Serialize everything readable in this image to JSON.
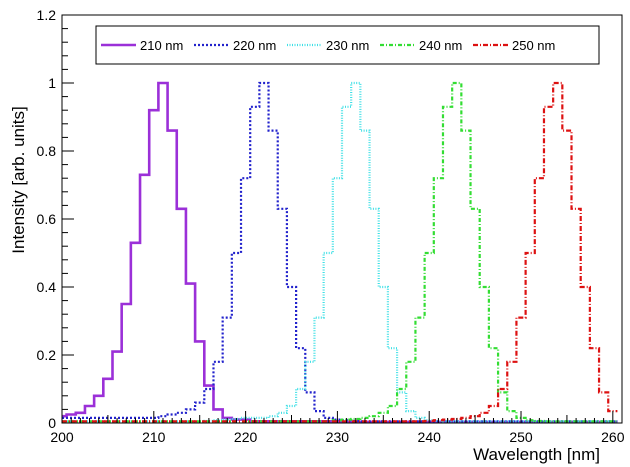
{
  "chart_data": {
    "type": "line",
    "title": "",
    "xlabel": "Wavelength [nm]",
    "ylabel": "Intensity [arb. units]",
    "xlim": [
      200,
      261
    ],
    "ylim": [
      0,
      1.2
    ],
    "grid": false,
    "legend_position": "top",
    "x_ticks": [
      "200",
      "210",
      "220",
      "230",
      "240",
      "250",
      "260"
    ],
    "y_ticks": [
      "0",
      "0.2",
      "0.4",
      "0.6",
      "0.8",
      "1",
      "1.2"
    ],
    "x": [
      200,
      201,
      202,
      203,
      204,
      205,
      206,
      207,
      208,
      209,
      210,
      211,
      212,
      213,
      214,
      215,
      216,
      217,
      218,
      219,
      220,
      221,
      222,
      223,
      224,
      225,
      226,
      227,
      228,
      229,
      230,
      231,
      232,
      233,
      234,
      235,
      236,
      237,
      238,
      239,
      240,
      241,
      242,
      243,
      244,
      245,
      246,
      247,
      248,
      249,
      250,
      251,
      252,
      253,
      254,
      255,
      256,
      257,
      258,
      259,
      260
    ],
    "series": [
      {
        "name": "210 nm",
        "color": "#9b30d8",
        "dash": "solid",
        "width": 2.6,
        "values": [
          0.02,
          0.025,
          0.03,
          0.05,
          0.08,
          0.13,
          0.21,
          0.35,
          0.53,
          0.73,
          0.92,
          1.0,
          0.86,
          0.63,
          0.41,
          0.24,
          0.11,
          0.04,
          0.015,
          0.01,
          0.01,
          0.005,
          0.005,
          0.005,
          0.005,
          0.005,
          0.005,
          0.005,
          0.005,
          0.005,
          0.005,
          0.003,
          0.003,
          0.003,
          0.003,
          0.003,
          0.003,
          0.003,
          0.003,
          0.003,
          0.003,
          0.003,
          0.003,
          0.003,
          0.003,
          0.003,
          0.003,
          0.003,
          0.003,
          0.003,
          0.003,
          0.003,
          0.003,
          0.003,
          0.003,
          0.003,
          0.003,
          0.003,
          0.003,
          0.003,
          0.003
        ]
      },
      {
        "name": "220 nm",
        "color": "#2222cc",
        "dash": "2,2",
        "width": 2.2,
        "values": [
          0.015,
          0.015,
          0.015,
          0.015,
          0.015,
          0.015,
          0.015,
          0.015,
          0.015,
          0.015,
          0.015,
          0.02,
          0.025,
          0.03,
          0.04,
          0.06,
          0.1,
          0.18,
          0.31,
          0.5,
          0.72,
          0.93,
          1.0,
          0.86,
          0.63,
          0.4,
          0.22,
          0.09,
          0.035,
          0.015,
          0.01,
          0.008,
          0.006,
          0.005,
          0.005,
          0.005,
          0.005,
          0.005,
          0.005,
          0.005,
          0.005,
          0.005,
          0.005,
          0.005,
          0.005,
          0.005,
          0.005,
          0.005,
          0.005,
          0.005,
          0.005,
          0.005,
          0.005,
          0.005,
          0.005,
          0.005,
          0.005,
          0.005,
          0.005,
          0.005,
          0.005
        ]
      },
      {
        "name": "230 nm",
        "color": "#40e0e6",
        "dash": "1,1.5",
        "width": 2.2,
        "values": [
          0.005,
          0.005,
          0.005,
          0.005,
          0.005,
          0.005,
          0.005,
          0.005,
          0.005,
          0.005,
          0.005,
          0.005,
          0.005,
          0.005,
          0.005,
          0.005,
          0.006,
          0.008,
          0.01,
          0.012,
          0.015,
          0.015,
          0.015,
          0.02,
          0.03,
          0.05,
          0.1,
          0.18,
          0.31,
          0.5,
          0.72,
          0.93,
          1.0,
          0.86,
          0.63,
          0.4,
          0.22,
          0.09,
          0.035,
          0.015,
          0.008,
          0.006,
          0.005,
          0.005,
          0.005,
          0.005,
          0.005,
          0.005,
          0.005,
          0.005,
          0.005,
          0.005,
          0.005,
          0.005,
          0.005,
          0.005,
          0.005,
          0.005,
          0.005,
          0.005,
          0.005
        ]
      },
      {
        "name": "240 nm",
        "color": "#33dd33",
        "dash": "4,2,1,2",
        "width": 2.2,
        "values": [
          0.005,
          0.005,
          0.005,
          0.005,
          0.005,
          0.005,
          0.005,
          0.005,
          0.005,
          0.005,
          0.005,
          0.005,
          0.005,
          0.005,
          0.005,
          0.005,
          0.005,
          0.005,
          0.005,
          0.005,
          0.005,
          0.005,
          0.005,
          0.005,
          0.005,
          0.005,
          0.005,
          0.005,
          0.005,
          0.005,
          0.008,
          0.01,
          0.012,
          0.015,
          0.02,
          0.03,
          0.05,
          0.1,
          0.18,
          0.31,
          0.5,
          0.72,
          0.93,
          1.0,
          0.86,
          0.63,
          0.4,
          0.22,
          0.09,
          0.035,
          0.015,
          0.008,
          0.006,
          0.005,
          0.005,
          0.005,
          0.005,
          0.005,
          0.005,
          0.005,
          0.005
        ]
      },
      {
        "name": "250 nm",
        "color": "#dd1111",
        "dash": "5,2,1,2",
        "width": 2.2,
        "values": [
          0.005,
          0.005,
          0.005,
          0.005,
          0.005,
          0.005,
          0.005,
          0.005,
          0.005,
          0.005,
          0.005,
          0.005,
          0.005,
          0.005,
          0.005,
          0.005,
          0.005,
          0.005,
          0.005,
          0.005,
          0.005,
          0.005,
          0.005,
          0.005,
          0.005,
          0.005,
          0.005,
          0.005,
          0.005,
          0.005,
          0.005,
          0.005,
          0.005,
          0.005,
          0.005,
          0.005,
          0.005,
          0.005,
          0.005,
          0.005,
          0.006,
          0.008,
          0.01,
          0.012,
          0.015,
          0.02,
          0.03,
          0.05,
          0.1,
          0.18,
          0.31,
          0.5,
          0.72,
          0.93,
          1.0,
          0.86,
          0.63,
          0.4,
          0.22,
          0.09,
          0.035
        ]
      }
    ]
  }
}
